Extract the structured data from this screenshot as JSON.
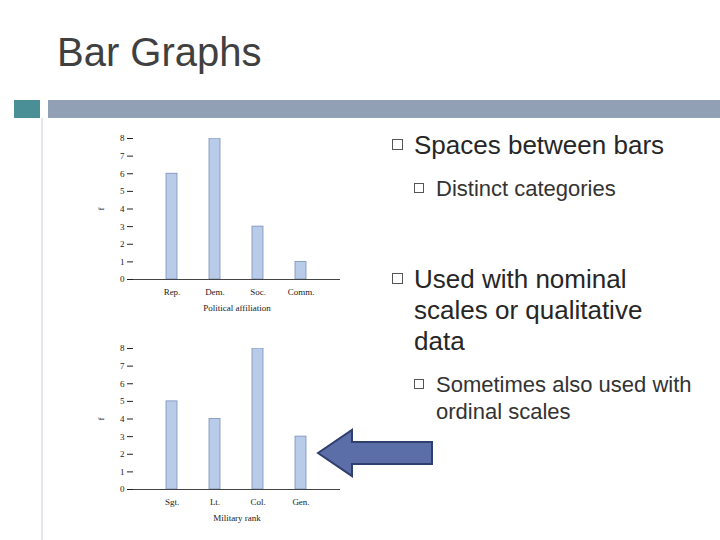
{
  "slide": {
    "title": "Bar Graphs",
    "bullets": [
      {
        "text": "Spaces between bars",
        "sub": [
          "Distinct categories"
        ]
      },
      {
        "text": "Used with nominal scales or qualitative data",
        "sub": [
          "Sometimes also used with ordinal scales"
        ]
      }
    ]
  },
  "chart_data": [
    {
      "type": "bar",
      "categories": [
        "Rep.",
        "Dem.",
        "Soc.",
        "Comm."
      ],
      "values": [
        6,
        8,
        3,
        1
      ],
      "x_label": "Political affiliation",
      "y_label": "f",
      "color": "#b8cbe8",
      "ylim": [
        0,
        8
      ],
      "yticks": [
        0,
        1,
        2,
        3,
        4,
        5,
        6,
        7,
        8
      ]
    },
    {
      "type": "bar",
      "categories": [
        "Sgt.",
        "Lt.",
        "Col.",
        "Gen."
      ],
      "values": [
        5,
        4,
        8,
        3
      ],
      "x_label": "Military rank",
      "y_label": "f",
      "color": "#b8cbe8",
      "ylim": [
        0,
        8
      ],
      "yticks": [
        0,
        1,
        2,
        3,
        4,
        5,
        6,
        7,
        8
      ]
    }
  ]
}
